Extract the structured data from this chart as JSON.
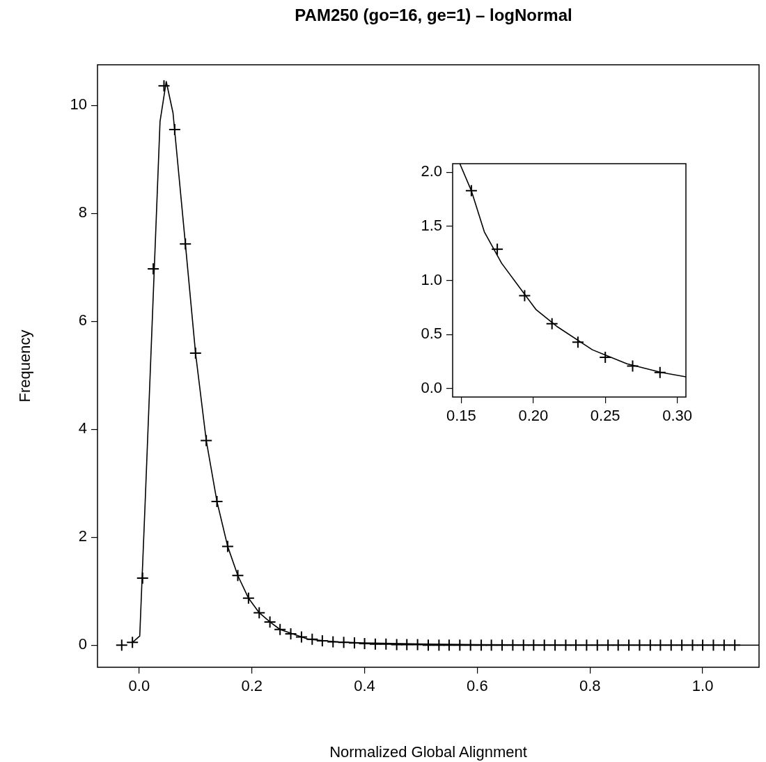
{
  "chart_data": [
    {
      "type": "line",
      "title": "PAM250 (go=16, ge=1) – logNormal",
      "xlabel": "Normalized Global Alignment",
      "ylabel": "Frequency",
      "xlim": [
        -0.074,
        1.1
      ],
      "ylim": [
        -0.41,
        10.75
      ],
      "xticks": [
        {
          "value": 0,
          "label": "0.0"
        },
        {
          "value": 0.2,
          "label": "0.2"
        },
        {
          "value": 0.4,
          "label": "0.4"
        },
        {
          "value": 0.6,
          "label": "0.6"
        },
        {
          "value": 0.8,
          "label": "0.8"
        },
        {
          "value": 1,
          "label": "1.0"
        }
      ],
      "yticks": [
        0,
        2,
        4,
        6,
        8,
        10
      ],
      "grid": false,
      "legend": false,
      "series": [
        {
          "type": "scatter",
          "marker": "cross",
          "color": "#000000",
          "x": [
            -0.031,
            -0.012,
            0.006,
            0.025,
            0.044,
            0.063,
            0.082,
            0.1,
            0.119,
            0.138,
            0.157,
            0.175,
            0.194,
            0.213,
            0.232,
            0.25,
            0.269,
            0.288,
            0.307,
            0.325,
            0.344,
            0.363,
            0.382,
            0.4,
            0.419,
            0.438,
            0.457,
            0.475,
            0.494,
            0.513,
            0.532,
            0.55,
            0.569,
            0.588,
            0.607,
            0.625,
            0.644,
            0.663,
            0.682,
            0.7,
            0.719,
            0.738,
            0.757,
            0.775,
            0.794,
            0.813,
            0.832,
            0.85,
            0.869,
            0.888,
            0.907,
            0.925,
            0.944,
            0.963,
            0.982,
            1.0,
            1.019,
            1.038,
            1.057
          ],
          "values": [
            0,
            0.05,
            1.24,
            6.97,
            10.36,
            9.55,
            7.43,
            5.41,
            3.79,
            2.66,
            1.83,
            1.29,
            0.87,
            0.6,
            0.43,
            0.29,
            0.21,
            0.15,
            0.11,
            0.08,
            0.06,
            0.05,
            0.04,
            0.03,
            0.02,
            0.02,
            0.01,
            0.01,
            0.01,
            0,
            0,
            0,
            0,
            0,
            0,
            0,
            0,
            0,
            0,
            0,
            0,
            0,
            0,
            0,
            0,
            0,
            0,
            0,
            0,
            0,
            0,
            0,
            0,
            0,
            0,
            0,
            0,
            0,
            0
          ]
        },
        {
          "type": "line",
          "marker": "none",
          "line_style": "solid",
          "color": "#000000",
          "x": [
            -0.012,
            0.001,
            0.011,
            0.037,
            0.048,
            0.06,
            0.082,
            0.1,
            0.119,
            0.138,
            0.157,
            0.175,
            0.194,
            0.213,
            0.232,
            0.25,
            0.3,
            0.35,
            0.4,
            0.5,
            0.6,
            0.8,
            1.1
          ],
          "values": [
            0.05,
            0.17,
            2.75,
            9.7,
            10.44,
            9.86,
            7.43,
            5.41,
            3.79,
            2.66,
            1.83,
            1.29,
            0.87,
            0.6,
            0.43,
            0.29,
            0.11,
            0.06,
            0.04,
            0.02,
            0.01,
            0,
            0
          ]
        }
      ]
    },
    {
      "type": "line",
      "xlim": [
        0.144,
        0.306
      ],
      "ylim": [
        -0.077,
        2.08
      ],
      "xticks": [
        {
          "value": 0.15,
          "label": "0.15"
        },
        {
          "value": 0.2,
          "label": "0.20"
        },
        {
          "value": 0.25,
          "label": "0.25"
        },
        {
          "value": 0.3,
          "label": "0.30"
        }
      ],
      "yticks": [
        {
          "value": 0,
          "label": "0.0"
        },
        {
          "value": 0.5,
          "label": "0.5"
        },
        {
          "value": 1,
          "label": "1.0"
        },
        {
          "value": 1.5,
          "label": "1.5"
        },
        {
          "value": 2,
          "label": "2.0"
        }
      ],
      "grid": false,
      "legend": false,
      "series": [
        {
          "type": "scatter",
          "marker": "cross",
          "color": "#000000",
          "x": [
            0.157,
            0.175,
            0.194,
            0.213,
            0.231,
            0.25,
            0.269,
            0.288
          ],
          "values": [
            1.83,
            1.29,
            0.86,
            0.6,
            0.43,
            0.29,
            0.21,
            0.15
          ]
        },
        {
          "type": "line",
          "marker": "none",
          "line_style": "solid",
          "color": "#000000",
          "x": [
            0.149,
            0.157,
            0.166,
            0.178,
            0.193,
            0.202,
            0.217,
            0.241,
            0.265,
            0.289,
            0.306
          ],
          "values": [
            2.08,
            1.83,
            1.45,
            1.16,
            0.89,
            0.73,
            0.57,
            0.36,
            0.23,
            0.15,
            0.11
          ]
        }
      ]
    }
  ]
}
